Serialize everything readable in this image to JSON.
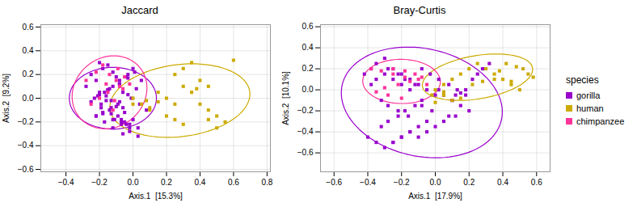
{
  "chart_data": [
    {
      "type": "scatter",
      "title": "Jaccard",
      "xlabel": "Axis.1  [15.3%]",
      "ylabel": "Axis.2  [9.2%]",
      "xlim": [
        -0.55,
        0.82
      ],
      "ylim": [
        -0.62,
        0.62
      ],
      "xticks": [
        -0.4,
        -0.2,
        0,
        0.2,
        0.4,
        0.6,
        0.8
      ],
      "yticks": [
        -0.6,
        -0.4,
        -0.2,
        0,
        0.2,
        0.4,
        0.6
      ],
      "grid": true,
      "marker": "square",
      "series": [
        {
          "name": "gorilla",
          "color": "#9900CC",
          "x": [
            -0.28,
            -0.22,
            -0.25,
            -0.18,
            -0.2,
            -0.15,
            -0.12,
            -0.1,
            -0.08,
            -0.14,
            -0.2,
            -0.16,
            -0.13,
            -0.09,
            -0.06,
            -0.18,
            -0.22,
            -0.11,
            -0.07,
            -0.04,
            -0.02,
            -0.05,
            -0.09,
            -0.14,
            -0.19,
            -0.23,
            -0.17,
            -0.12,
            -0.08,
            -0.03,
            0.0,
            -0.04,
            -0.08,
            -0.15,
            -0.2,
            -0.25,
            -0.19,
            -0.13,
            -0.07,
            -0.02,
            0.03,
            0.0,
            -0.05,
            -0.1,
            -0.16,
            -0.21,
            -0.15,
            -0.08,
            -0.03,
            0.01,
            0.05,
            0.02,
            -0.03,
            -0.08,
            -0.13,
            -0.18,
            -0.12,
            -0.07,
            -0.02,
            0.03,
            -0.06,
            -0.12,
            -0.17,
            -0.22,
            0.08,
            0.04,
            -0.01,
            -0.06
          ],
          "y": [
            0.1,
            0.15,
            0.2,
            0.25,
            0.3,
            0.28,
            0.22,
            0.18,
            0.12,
            0.08,
            0.05,
            0.02,
            -0.02,
            -0.05,
            -0.08,
            -0.12,
            -0.15,
            -0.18,
            -0.2,
            -0.22,
            -0.25,
            -0.2,
            -0.15,
            -0.1,
            -0.05,
            0.0,
            0.05,
            0.1,
            0.15,
            0.2,
            0.25,
            0.18,
            0.12,
            0.07,
            0.03,
            -0.03,
            -0.08,
            -0.13,
            -0.18,
            -0.22,
            -0.25,
            -0.18,
            -0.12,
            -0.07,
            -0.02,
            0.02,
            0.07,
            0.12,
            0.17,
            0.22,
            0.15,
            0.08,
            0.03,
            -0.03,
            -0.08,
            -0.13,
            -0.18,
            -0.22,
            -0.28,
            -0.32,
            -0.3,
            -0.25,
            -0.2,
            -0.15,
            -0.1,
            -0.05,
            0.0,
            0.05
          ],
          "ellipse": {
            "cx": -0.12,
            "cy": 0.0,
            "width": 0.52,
            "height": 0.52,
            "angle": 15
          }
        },
        {
          "name": "human",
          "color": "#CCAA00",
          "x": [
            0.0,
            0.05,
            0.1,
            0.15,
            0.2,
            0.25,
            0.3,
            0.35,
            0.4,
            0.45,
            0.5,
            0.55,
            0.25,
            0.3,
            0.35,
            0.4,
            0.45,
            0.2,
            0.25,
            0.3,
            0.6,
            0.5,
            0.15,
            0.1,
            0.0,
            0.08,
            0.45,
            0.38
          ],
          "y": [
            0.0,
            -0.05,
            -0.1,
            0.05,
            0.0,
            -0.05,
            0.1,
            0.05,
            -0.05,
            -0.1,
            -0.15,
            -0.2,
            0.2,
            0.25,
            0.3,
            0.15,
            0.1,
            -0.15,
            -0.18,
            -0.22,
            0.32,
            -0.25,
            -0.03,
            -0.08,
            -0.05,
            -0.02,
            -0.18,
            0.08
          ],
          "ellipse": {
            "cx": 0.28,
            "cy": -0.02,
            "width": 0.85,
            "height": 0.6,
            "angle": 15
          }
        },
        {
          "name": "chimpanzee",
          "color": "#FF3399",
          "x": [
            -0.28,
            -0.22,
            -0.18,
            -0.14,
            -0.1,
            -0.08,
            -0.15,
            -0.2,
            -0.25,
            -0.12,
            -0.06,
            -0.02,
            -0.05,
            -0.09,
            -0.16,
            -0.11
          ],
          "y": [
            0.15,
            0.22,
            0.28,
            0.2,
            0.15,
            0.1,
            0.05,
            0.0,
            -0.05,
            -0.1,
            0.08,
            0.12,
            0.18,
            0.25,
            0.12,
            -0.02
          ],
          "ellipse": {
            "cx": -0.14,
            "cy": 0.05,
            "width": 0.44,
            "height": 0.62,
            "angle": -10
          }
        }
      ]
    },
    {
      "type": "scatter",
      "title": "Bray-Curtis",
      "xlabel": "Axis.1  [17.9%]",
      "ylabel": "Axis.2  [10.1%]",
      "xlim": [
        -0.68,
        0.68
      ],
      "ylim": [
        -0.78,
        0.62
      ],
      "xticks": [
        -0.6,
        -0.4,
        -0.2,
        0,
        0.2,
        0.4,
        0.6
      ],
      "yticks": [
        -0.6,
        -0.4,
        -0.2,
        0,
        0.2,
        0.4,
        0.6
      ],
      "grid": true,
      "marker": "square",
      "legend": "right",
      "legend_title": "species",
      "series": [
        {
          "name": "gorilla",
          "color": "#9900CC",
          "x": [
            -0.42,
            -0.38,
            -0.35,
            -0.3,
            -0.25,
            -0.2,
            -0.15,
            -0.1,
            -0.05,
            0.0,
            -0.08,
            -0.12,
            -0.18,
            -0.22,
            -0.28,
            -0.32,
            -0.15,
            -0.2,
            -0.25,
            -0.1,
            -0.05,
            0.0,
            0.05,
            0.08,
            -0.02,
            -0.08,
            0.1,
            0.12,
            0.15,
            0.18,
            -0.12,
            -0.18,
            -0.22,
            -0.28,
            -0.35,
            -0.38,
            0.02,
            0.05,
            0.1,
            0.15,
            0.2,
            0.12,
            -0.05,
            -0.1,
            -0.15,
            -0.2,
            -0.25,
            -0.3,
            -0.35,
            -0.4,
            -0.15,
            -0.2,
            -0.25,
            -0.3,
            -0.08,
            -0.03,
            0.02,
            0.08,
            0.13,
            0.18,
            -0.32,
            -0.28,
            -0.22,
            -0.16,
            0.22,
            0.25,
            0.28,
            0.32
          ],
          "y": [
            0.15,
            0.2,
            0.25,
            0.3,
            0.2,
            0.15,
            0.1,
            0.05,
            0.0,
            -0.05,
            -0.1,
            -0.15,
            -0.2,
            -0.25,
            -0.3,
            -0.35,
            -0.4,
            -0.45,
            -0.5,
            -0.45,
            -0.4,
            -0.35,
            -0.3,
            -0.25,
            -0.2,
            -0.15,
            -0.1,
            -0.05,
            -0.03,
            0.0,
            0.05,
            0.1,
            0.15,
            0.2,
            0.1,
            0.05,
            0.0,
            -0.05,
            -0.1,
            -0.15,
            -0.2,
            -0.25,
            -0.3,
            -0.35,
            -0.4,
            -0.45,
            -0.5,
            -0.55,
            -0.5,
            -0.45,
            0.0,
            0.05,
            0.1,
            0.15,
            0.2,
            0.15,
            0.1,
            0.05,
            0.0,
            -0.05,
            -0.1,
            -0.15,
            -0.2,
            -0.25,
            0.1,
            0.15,
            0.2,
            0.25
          ],
          "ellipse": {
            "cx": -0.08,
            "cy": -0.12,
            "width": 0.9,
            "height": 1.1,
            "angle": 30
          }
        },
        {
          "name": "human",
          "color": "#CCAA00",
          "x": [
            0.0,
            0.05,
            0.1,
            0.15,
            0.2,
            0.25,
            0.3,
            0.35,
            0.4,
            0.45,
            0.5,
            0.05,
            0.1,
            0.15,
            0.05,
            0.0,
            -0.02,
            0.42,
            0.48,
            0.52,
            0.55,
            0.58,
            0.35,
            0.28,
            0.22,
            0.38,
            0.45
          ],
          "y": [
            0.0,
            0.05,
            0.1,
            0.15,
            0.2,
            0.25,
            0.2,
            0.15,
            0.1,
            0.05,
            0.0,
            -0.05,
            -0.1,
            -0.08,
            -0.02,
            -0.12,
            -0.05,
            0.25,
            0.22,
            0.2,
            0.15,
            0.12,
            0.1,
            0.08,
            0.05,
            0.18,
            0.08
          ],
          "ellipse": {
            "cx": 0.25,
            "cy": 0.12,
            "width": 0.68,
            "height": 0.4,
            "angle": 20
          }
        },
        {
          "name": "chimpanzee",
          "color": "#FF3399",
          "x": [
            -0.38,
            -0.32,
            -0.25,
            -0.18,
            -0.12,
            -0.08,
            -0.15,
            -0.22,
            -0.3,
            -0.35,
            -0.28,
            -0.2,
            -0.1,
            -0.05,
            -0.18,
            -0.25
          ],
          "y": [
            0.2,
            0.18,
            0.15,
            0.18,
            0.15,
            0.12,
            0.08,
            0.05,
            0.02,
            -0.02,
            -0.05,
            -0.08,
            0.1,
            0.05,
            0.12,
            0.2
          ],
          "ellipse": {
            "cx": -0.2,
            "cy": 0.08,
            "width": 0.46,
            "height": 0.42,
            "angle": -5
          }
        }
      ]
    }
  ]
}
